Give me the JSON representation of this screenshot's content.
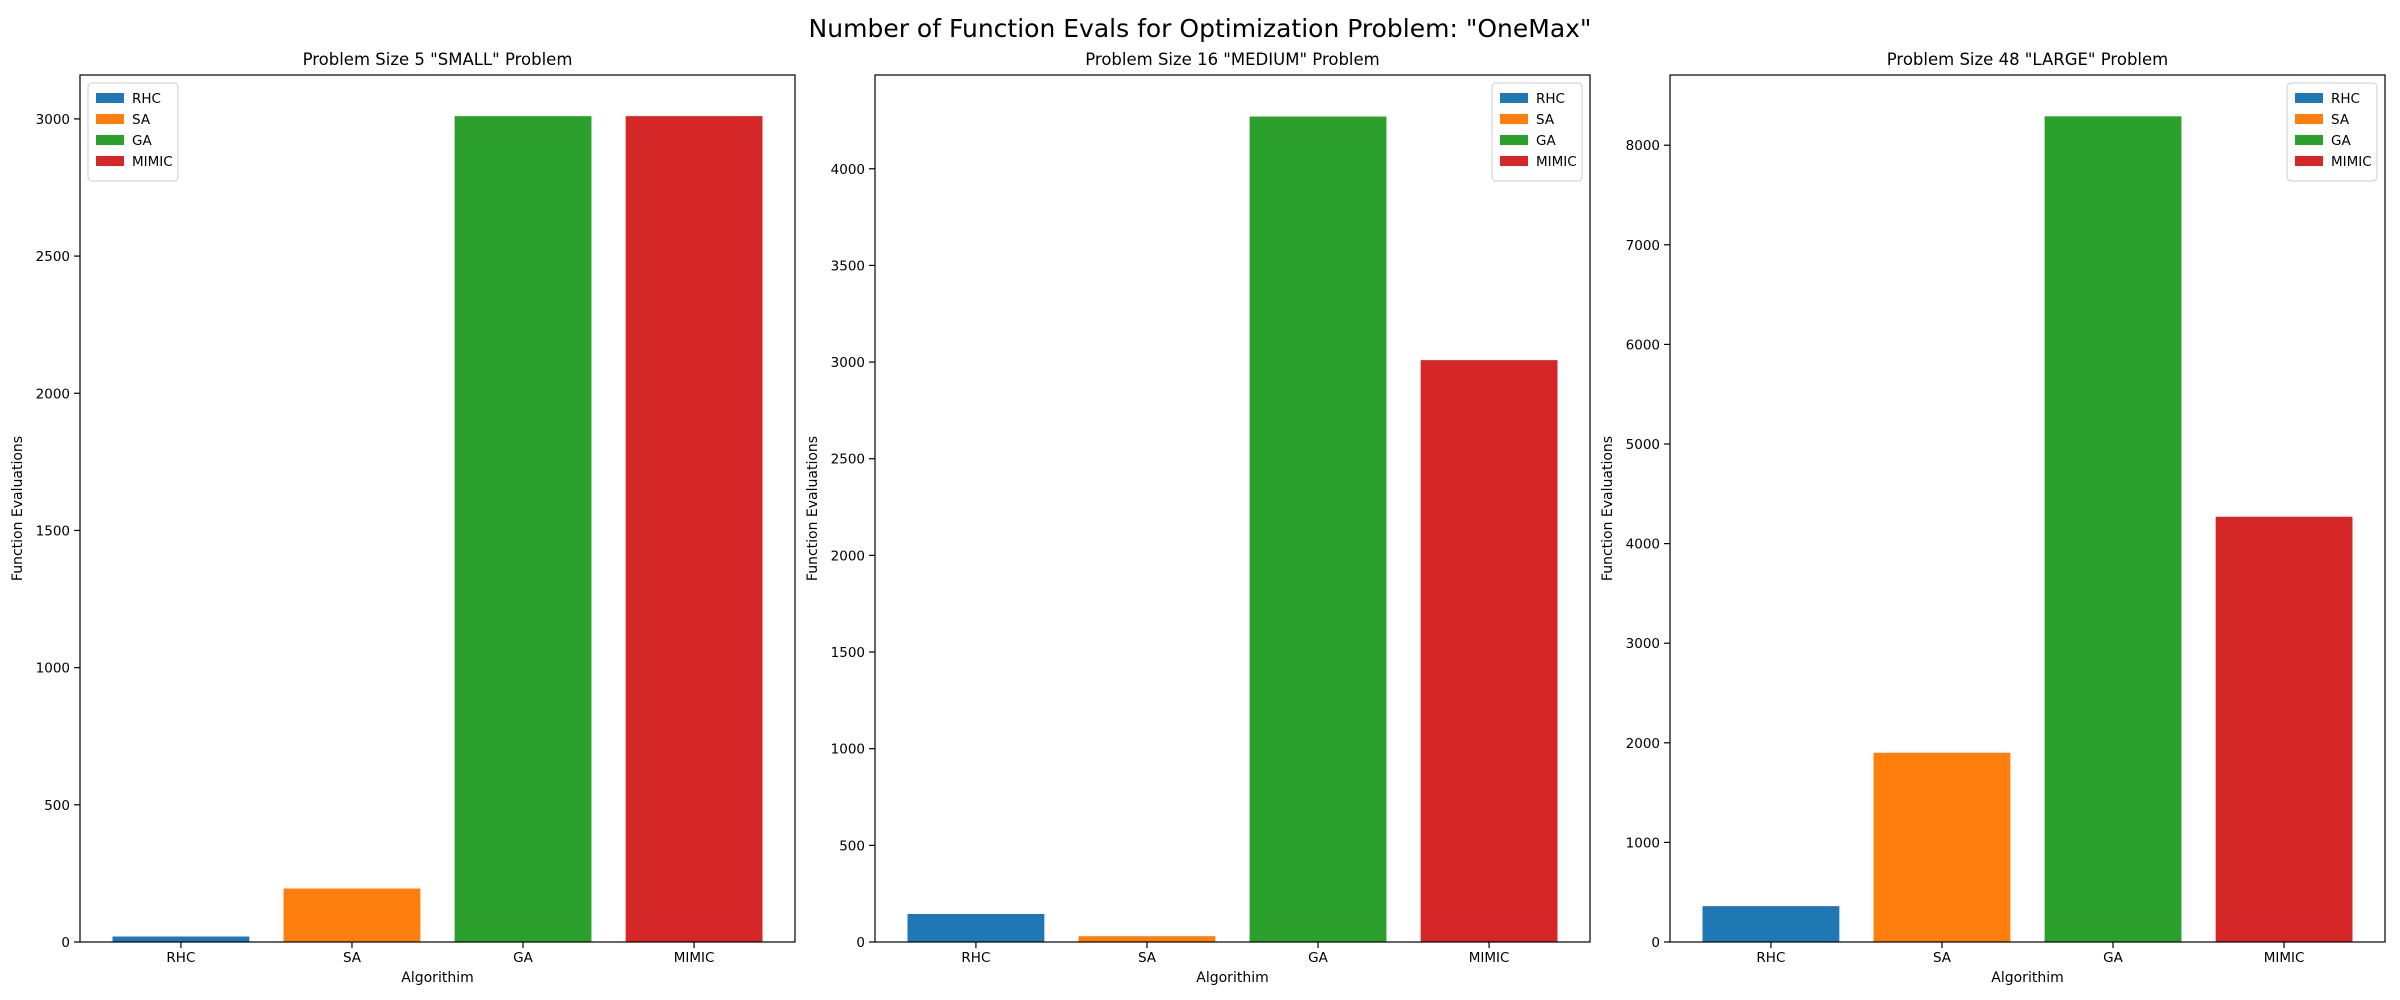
{
  "figure": {
    "suptitle": "Number of Function Evals for Optimization Problem: \"OneMax\""
  },
  "colors": {
    "RHC": "#1f77b4",
    "SA": "#ff7f0e",
    "GA": "#2ca02c",
    "MIMIC": "#d62728"
  },
  "chart_data": [
    {
      "type": "bar",
      "title": "Problem Size 5 \"SMALL\" Problem",
      "xlabel": "Algorithim",
      "ylabel": "Function Evaluations",
      "categories": [
        "RHC",
        "SA",
        "GA",
        "MIMIC"
      ],
      "values": [
        20,
        195,
        3010,
        3010
      ],
      "ylim": [
        0,
        3160
      ],
      "yticks": [
        0,
        500,
        1000,
        1500,
        2000,
        2500,
        3000
      ],
      "legend": {
        "placement": "top-left",
        "entries": [
          "RHC",
          "SA",
          "GA",
          "MIMIC"
        ]
      },
      "grid": false
    },
    {
      "type": "bar",
      "title": "Problem Size 16 \"MEDIUM\" Problem",
      "xlabel": "Algorithim",
      "ylabel": "Function Evaluations",
      "categories": [
        "RHC",
        "SA",
        "GA",
        "MIMIC"
      ],
      "values": [
        145,
        30,
        4270,
        3010
      ],
      "ylim": [
        0,
        4485
      ],
      "yticks": [
        0,
        500,
        1000,
        1500,
        2000,
        2500,
        3000,
        3500,
        4000
      ],
      "legend": {
        "placement": "top-right",
        "entries": [
          "RHC",
          "SA",
          "GA",
          "MIMIC"
        ]
      },
      "grid": false
    },
    {
      "type": "bar",
      "title": "Problem Size 48 \"LARGE\" Problem",
      "xlabel": "Algorithim",
      "ylabel": "Function Evaluations",
      "categories": [
        "RHC",
        "SA",
        "GA",
        "MIMIC"
      ],
      "values": [
        360,
        1900,
        8290,
        4270
      ],
      "ylim": [
        0,
        8705
      ],
      "yticks": [
        0,
        1000,
        2000,
        3000,
        4000,
        5000,
        6000,
        7000,
        8000
      ],
      "legend": {
        "placement": "top-right",
        "entries": [
          "RHC",
          "SA",
          "GA",
          "MIMIC"
        ]
      },
      "grid": false
    }
  ]
}
